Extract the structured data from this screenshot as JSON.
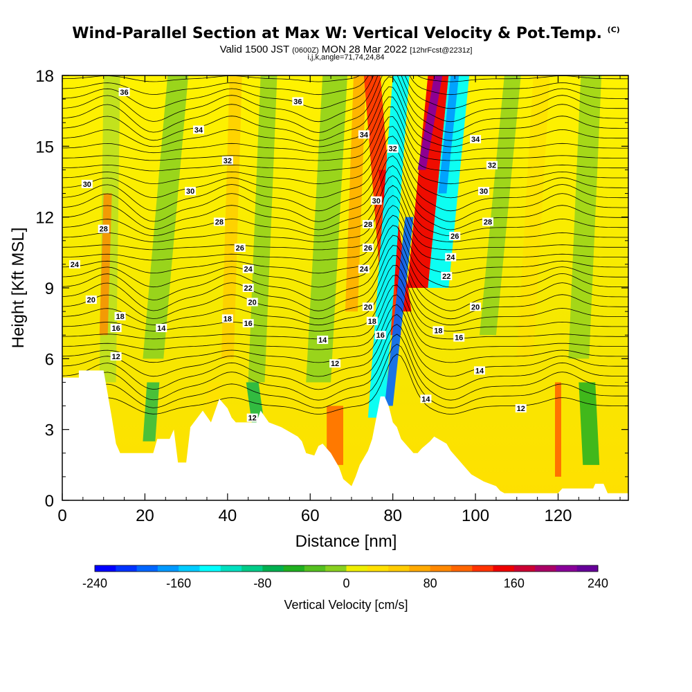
{
  "header": {
    "title_main": "Wind-Parallel Section at Max W: Vertical Velocity & Pot.Temp.",
    "title_corner": "(C)",
    "valid_prefix": "Valid 1500 JST",
    "valid_zulu": "(0600Z)",
    "valid_date": "MON 28 Mar 2022",
    "forecast": "[12hrFcst@2231z]",
    "indices": "i,j,k,angle=71,74,24,84"
  },
  "colors": {
    "terrain": "#ffffff",
    "contour": "#000000",
    "scale": [
      "#0000ff",
      "#0033ff",
      "#0066ff",
      "#0099ff",
      "#00ccff",
      "#00ffff",
      "#00e0c0",
      "#00cc88",
      "#00b050",
      "#20b020",
      "#55c020",
      "#88d020",
      "#bbe020",
      "#eeee00",
      "#ffe000",
      "#ffcc00",
      "#ffaa00",
      "#ff8800",
      "#ff6600",
      "#ff3300",
      "#ee0000",
      "#cc0033",
      "#aa0066",
      "#880099",
      "#660099"
    ]
  },
  "colorbar": {
    "ticks": [
      "-240",
      "-160",
      "-80",
      "0",
      "80",
      "160",
      "240"
    ],
    "label": "Vertical Velocity [cm/s]"
  },
  "chart_data": {
    "type": "heatmap",
    "xlabel": "Distance [nm]",
    "ylabel": "Height [Kft MSL]",
    "xlim": [
      0,
      137
    ],
    "ylim": [
      0,
      18
    ],
    "x_ticks": [
      0,
      20,
      40,
      60,
      80,
      100,
      120
    ],
    "y_ticks": [
      0,
      3,
      6,
      9,
      12,
      15,
      18
    ],
    "variable": "Vertical Velocity [cm/s]",
    "value_range": [
      -240,
      240
    ],
    "contour_variable": "Pot.Temp.",
    "contour_labels": [
      {
        "text": "36",
        "x": 15,
        "y": 17.3
      },
      {
        "text": "36",
        "x": 57,
        "y": 16.9
      },
      {
        "text": "34",
        "x": 33,
        "y": 15.7
      },
      {
        "text": "34",
        "x": 73,
        "y": 15.5
      },
      {
        "text": "34",
        "x": 100,
        "y": 15.3
      },
      {
        "text": "32",
        "x": 40,
        "y": 14.4
      },
      {
        "text": "32",
        "x": 80,
        "y": 14.9
      },
      {
        "text": "32",
        "x": 104,
        "y": 14.2
      },
      {
        "text": "30",
        "x": 6,
        "y": 13.4
      },
      {
        "text": "30",
        "x": 31,
        "y": 13.1
      },
      {
        "text": "30",
        "x": 76,
        "y": 12.7
      },
      {
        "text": "30",
        "x": 102,
        "y": 13.1
      },
      {
        "text": "28",
        "x": 10,
        "y": 11.5
      },
      {
        "text": "28",
        "x": 38,
        "y": 11.8
      },
      {
        "text": "28",
        "x": 74,
        "y": 11.7
      },
      {
        "text": "28",
        "x": 103,
        "y": 11.8
      },
      {
        "text": "26",
        "x": 43,
        "y": 10.7
      },
      {
        "text": "26",
        "x": 74,
        "y": 10.7
      },
      {
        "text": "26",
        "x": 95,
        "y": 11.2
      },
      {
        "text": "24",
        "x": 3,
        "y": 10.0
      },
      {
        "text": "24",
        "x": 45,
        "y": 9.8
      },
      {
        "text": "24",
        "x": 73,
        "y": 9.8
      },
      {
        "text": "24",
        "x": 94,
        "y": 10.3
      },
      {
        "text": "22",
        "x": 45,
        "y": 9.0
      },
      {
        "text": "22",
        "x": 93,
        "y": 9.5
      },
      {
        "text": "20",
        "x": 7,
        "y": 8.5
      },
      {
        "text": "20",
        "x": 46,
        "y": 8.4
      },
      {
        "text": "20",
        "x": 74,
        "y": 8.2
      },
      {
        "text": "20",
        "x": 100,
        "y": 8.2
      },
      {
        "text": "18",
        "x": 14,
        "y": 7.8
      },
      {
        "text": "18",
        "x": 40,
        "y": 7.7
      },
      {
        "text": "18",
        "x": 75,
        "y": 7.6
      },
      {
        "text": "18",
        "x": 91,
        "y": 7.2
      },
      {
        "text": "16",
        "x": 13,
        "y": 7.3
      },
      {
        "text": "16",
        "x": 45,
        "y": 7.5
      },
      {
        "text": "16",
        "x": 77,
        "y": 7.0
      },
      {
        "text": "16",
        "x": 96,
        "y": 6.9
      },
      {
        "text": "14",
        "x": 24,
        "y": 7.3
      },
      {
        "text": "14",
        "x": 63,
        "y": 6.8
      },
      {
        "text": "14",
        "x": 101,
        "y": 5.5
      },
      {
        "text": "14",
        "x": 88,
        "y": 4.3
      },
      {
        "text": "12",
        "x": 13,
        "y": 6.1
      },
      {
        "text": "12",
        "x": 66,
        "y": 5.8
      },
      {
        "text": "12",
        "x": 46,
        "y": 3.5
      },
      {
        "text": "12",
        "x": 111,
        "y": 3.9
      }
    ]
  }
}
